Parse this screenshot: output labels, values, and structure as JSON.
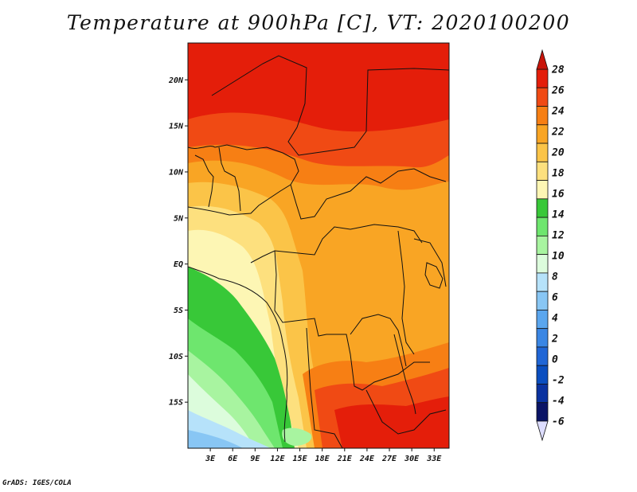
{
  "title": "Temperature at 900hPa [C], VT: 2020100200",
  "credit": "GrADS: IGES/COLA",
  "map": {
    "projection": "latlon",
    "lon_range": [
      0,
      35
    ],
    "lat_range": [
      -20,
      24
    ],
    "lat_ticks": [
      {
        "value": 20,
        "label": "20N"
      },
      {
        "value": 15,
        "label": "15N"
      },
      {
        "value": 10,
        "label": "10N"
      },
      {
        "value": 5,
        "label": "5N"
      },
      {
        "value": 0,
        "label": "EQ"
      },
      {
        "value": -5,
        "label": "5S"
      },
      {
        "value": -10,
        "label": "10S"
      },
      {
        "value": -15,
        "label": "15S"
      }
    ],
    "lon_ticks": [
      {
        "value": 3,
        "label": "3E"
      },
      {
        "value": 6,
        "label": "6E"
      },
      {
        "value": 9,
        "label": "9E"
      },
      {
        "value": 12,
        "label": "12E"
      },
      {
        "value": 15,
        "label": "15E"
      },
      {
        "value": 18,
        "label": "18E"
      },
      {
        "value": 21,
        "label": "21E"
      },
      {
        "value": 24,
        "label": "24E"
      },
      {
        "value": 27,
        "label": "27E"
      },
      {
        "value": 30,
        "label": "30E"
      },
      {
        "value": 33,
        "label": "33E"
      }
    ]
  },
  "colorbar": {
    "labels": [
      "28",
      "26",
      "24",
      "22",
      "20",
      "18",
      "16",
      "14",
      "12",
      "10",
      "8",
      "6",
      "4",
      "2",
      "0",
      "-2",
      "-4",
      "-6"
    ],
    "colors": [
      "#e41e0a",
      "#f04a14",
      "#f77f14",
      "#f9a524",
      "#fbc448",
      "#fde07e",
      "#fdf6b4",
      "#38c838",
      "#6ee66e",
      "#a8f4a0",
      "#dcfcdc",
      "#b6e2fa",
      "#88c6f4",
      "#5aa6ee",
      "#3a86e4",
      "#2066d6",
      "#0a4ec0",
      "#0a32a0",
      "#0a1466"
    ],
    "top_arrow_color": "#c8140a",
    "bottom_arrow_color": "#ddddff"
  }
}
